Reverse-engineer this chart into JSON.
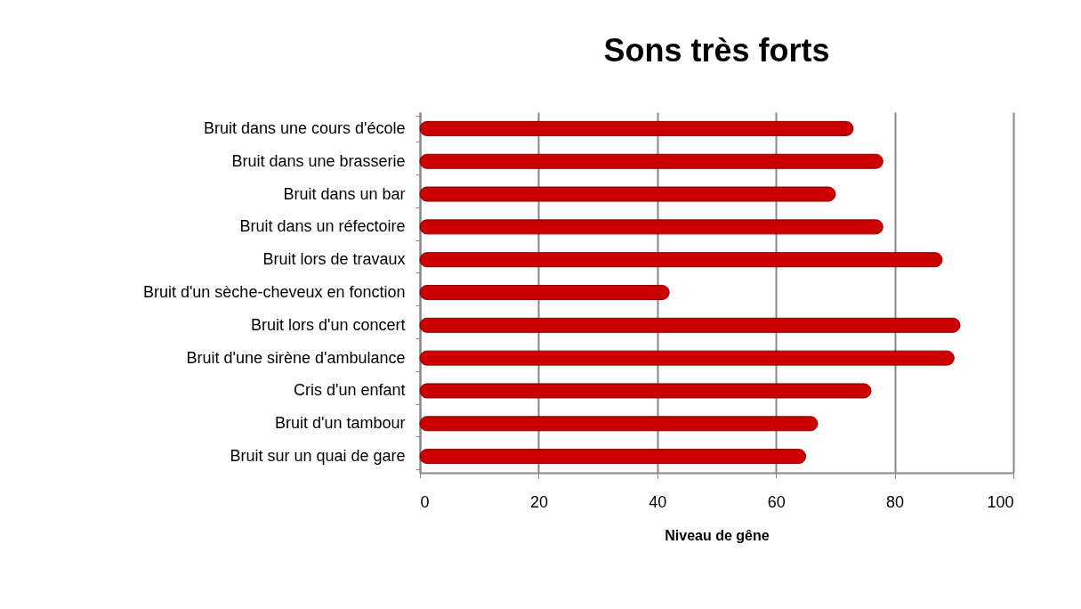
{
  "chart_data": {
    "type": "bar",
    "orientation": "horizontal",
    "title": "Sons très forts",
    "xlabel": "Niveau de gêne",
    "categories": [
      "Bruit dans une cours d'école",
      "Bruit dans une brasserie",
      "Bruit dans un bar",
      "Bruit dans un réfectoire",
      "Bruit lors de travaux",
      "Bruit d'un sèche-cheveux en fonction",
      "Bruit lors d'un concert",
      "Bruit d'une sirène d'ambulance",
      "Cris d'un enfant",
      "Bruit d'un tambour",
      "Bruit sur un quai de gare"
    ],
    "values": [
      73,
      78,
      70,
      78,
      88,
      42,
      91,
      90,
      76,
      67,
      65
    ],
    "color": "#cc0000",
    "xlim": [
      0,
      100
    ],
    "xticks": [
      0,
      20,
      40,
      60,
      80,
      100
    ],
    "grid": "x"
  }
}
